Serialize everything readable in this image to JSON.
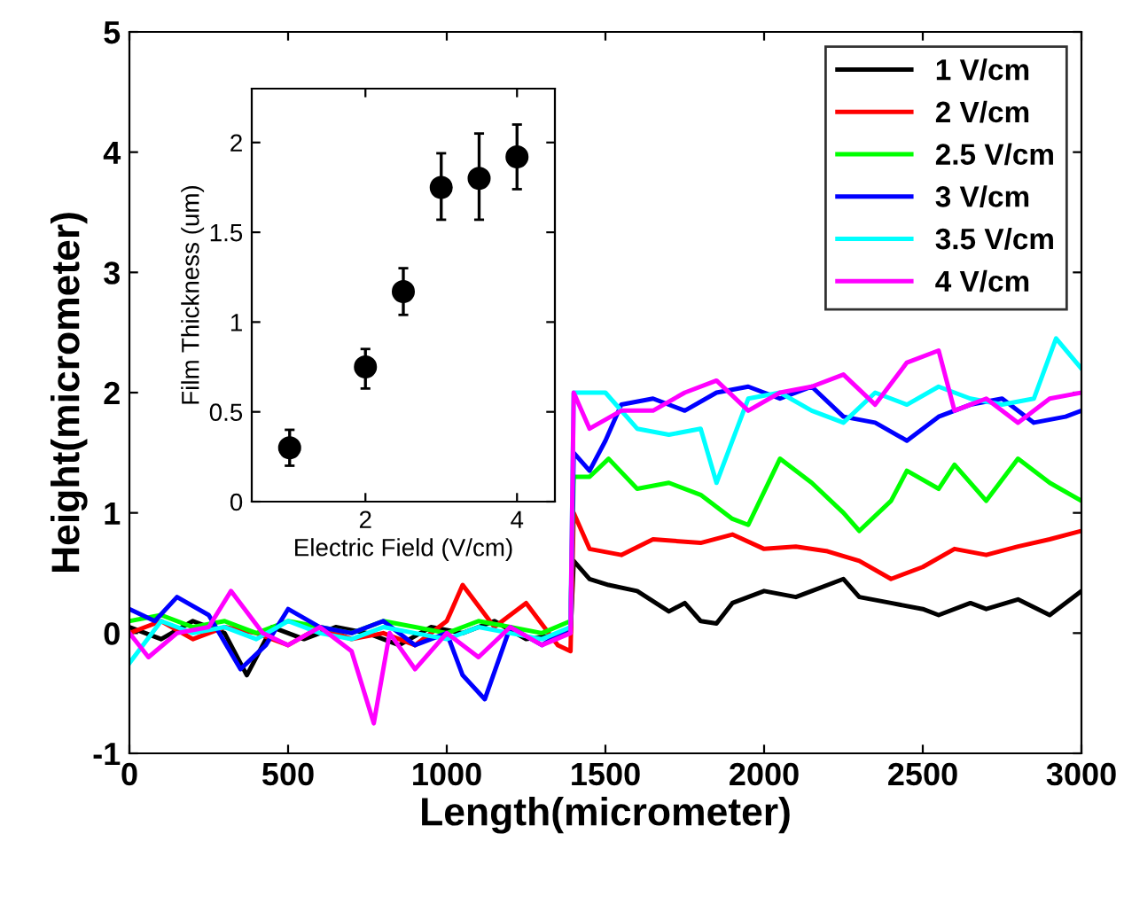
{
  "chart_data": [
    {
      "type": "line",
      "xlabel": "Length(micrometer)",
      "ylabel": "Height(micrometer)",
      "xlim": [
        0,
        3000
      ],
      "xticks": [
        0,
        500,
        1000,
        1500,
        2000,
        2500,
        3000
      ],
      "ylim": [
        -1,
        5
      ],
      "yticks": [
        -1,
        0,
        1,
        2,
        3,
        4,
        5
      ],
      "legend": "top right",
      "grid": false,
      "line_style": "solid",
      "marker": "none",
      "series": [
        {
          "name": "1 V/cm",
          "color": "#000000",
          "x": [
            0,
            100,
            200,
            300,
            370,
            450,
            550,
            650,
            750,
            850,
            950,
            1050,
            1150,
            1250,
            1390,
            1400,
            1450,
            1510,
            1600,
            1700,
            1750,
            1800,
            1850,
            1900,
            1950,
            2000,
            2100,
            2150,
            2250,
            2300,
            2400,
            2500,
            2550,
            2650,
            2700,
            2800,
            2900,
            3000
          ],
          "values": [
            0.05,
            -0.05,
            0.1,
            0.0,
            -0.35,
            0.05,
            -0.05,
            0.05,
            0.0,
            -0.1,
            0.05,
            0.0,
            0.1,
            -0.05,
            0.0,
            0.6,
            0.45,
            0.4,
            0.35,
            0.18,
            0.25,
            0.1,
            0.08,
            0.25,
            0.3,
            0.35,
            0.3,
            0.35,
            0.45,
            0.3,
            0.25,
            0.2,
            0.15,
            0.25,
            0.2,
            0.28,
            0.15,
            0.35
          ]
        },
        {
          "name": "2 V/cm",
          "color": "#ff0000",
          "x": [
            0,
            100,
            200,
            300,
            400,
            500,
            600,
            700,
            800,
            900,
            1000,
            1050,
            1150,
            1250,
            1350,
            1390,
            1400,
            1450,
            1550,
            1650,
            1800,
            1900,
            2000,
            2100,
            2200,
            2300,
            2400,
            2500,
            2600,
            2700,
            2800,
            2900,
            3000
          ],
          "values": [
            0.0,
            0.1,
            -0.05,
            0.05,
            0.0,
            -0.1,
            0.05,
            -0.05,
            0.0,
            -0.1,
            0.1,
            0.4,
            0.05,
            0.25,
            -0.1,
            -0.15,
            1.0,
            0.7,
            0.65,
            0.78,
            0.75,
            0.82,
            0.7,
            0.72,
            0.68,
            0.6,
            0.45,
            0.55,
            0.7,
            0.65,
            0.72,
            0.78,
            0.85
          ]
        },
        {
          "name": "2.5 V/cm",
          "color": "#00ff00",
          "x": [
            0,
            100,
            200,
            300,
            400,
            500,
            600,
            700,
            800,
            900,
            1000,
            1100,
            1200,
            1300,
            1390,
            1400,
            1450,
            1510,
            1600,
            1700,
            1800,
            1900,
            1950,
            2050,
            2150,
            2250,
            2300,
            2400,
            2450,
            2550,
            2600,
            2700,
            2800,
            2900,
            3000
          ],
          "values": [
            0.1,
            0.15,
            0.05,
            0.1,
            0.0,
            0.1,
            0.05,
            0.0,
            0.1,
            0.05,
            0.0,
            0.1,
            0.05,
            0.0,
            0.1,
            1.3,
            1.3,
            1.45,
            1.2,
            1.25,
            1.15,
            0.95,
            0.9,
            1.45,
            1.25,
            1.0,
            0.85,
            1.1,
            1.35,
            1.2,
            1.4,
            1.1,
            1.45,
            1.25,
            1.1
          ]
        },
        {
          "name": "3 V/cm",
          "color": "#0000ff",
          "x": [
            0,
            80,
            150,
            250,
            350,
            430,
            500,
            600,
            700,
            800,
            900,
            1000,
            1050,
            1120,
            1200,
            1300,
            1390,
            1400,
            1450,
            1500,
            1550,
            1650,
            1750,
            1850,
            1950,
            2050,
            2150,
            2250,
            2350,
            2450,
            2550,
            2650,
            2750,
            2850,
            2950,
            3000
          ],
          "values": [
            0.2,
            0.1,
            0.3,
            0.15,
            -0.3,
            -0.1,
            0.2,
            0.05,
            0.0,
            0.1,
            -0.1,
            0.0,
            -0.35,
            -0.55,
            0.05,
            -0.1,
            0.05,
            1.5,
            1.35,
            1.6,
            1.9,
            1.95,
            1.85,
            2.0,
            2.05,
            1.95,
            2.05,
            1.8,
            1.75,
            1.6,
            1.8,
            1.9,
            1.95,
            1.75,
            1.8,
            1.85
          ]
        },
        {
          "name": "3.5 V/cm",
          "color": "#00ffff",
          "x": [
            0,
            100,
            200,
            300,
            400,
            500,
            600,
            700,
            800,
            900,
            1000,
            1100,
            1200,
            1300,
            1390,
            1400,
            1500,
            1600,
            1700,
            1800,
            1850,
            1950,
            2050,
            2150,
            2250,
            2350,
            2450,
            2550,
            2650,
            2750,
            2850,
            2920,
            3000
          ],
          "values": [
            -0.25,
            0.1,
            0.0,
            0.05,
            -0.05,
            0.1,
            0.0,
            -0.05,
            0.05,
            0.0,
            -0.05,
            0.05,
            0.0,
            -0.05,
            0.05,
            2.0,
            2.0,
            1.7,
            1.65,
            1.7,
            1.25,
            1.95,
            2.0,
            1.85,
            1.75,
            2.0,
            1.9,
            2.05,
            1.95,
            1.9,
            1.95,
            2.45,
            2.2
          ]
        },
        {
          "name": "4 V/cm",
          "color": "#ff00ff",
          "x": [
            0,
            60,
            150,
            250,
            320,
            420,
            500,
            600,
            700,
            770,
            820,
            900,
            1000,
            1100,
            1200,
            1300,
            1390,
            1400,
            1450,
            1550,
            1650,
            1750,
            1850,
            1950,
            2050,
            2150,
            2250,
            2350,
            2450,
            2550,
            2600,
            2700,
            2800,
            2900,
            3000
          ],
          "values": [
            0.0,
            -0.2,
            0.0,
            0.05,
            0.35,
            0.0,
            -0.1,
            0.05,
            -0.15,
            -0.75,
            0.0,
            -0.3,
            0.0,
            -0.2,
            0.05,
            -0.1,
            0.0,
            2.0,
            1.7,
            1.85,
            1.85,
            2.0,
            2.1,
            1.85,
            2.0,
            2.05,
            2.15,
            1.9,
            2.25,
            2.35,
            1.85,
            1.95,
            1.75,
            1.95,
            2.0
          ]
        }
      ]
    },
    {
      "type": "scatter",
      "xlabel": "Electric Field (V/cm)",
      "ylabel": "Film Thickness (um)",
      "xlim": [
        0.5,
        4.5
      ],
      "xticks": [
        2,
        4
      ],
      "ylim": [
        0,
        2.3
      ],
      "yticks": [
        0,
        0.5,
        1,
        1.5,
        2
      ],
      "marker": "circle",
      "grid": false,
      "series": [
        {
          "color": "#000000",
          "x": [
            1,
            2,
            2.5,
            3,
            3.5,
            4
          ],
          "values": [
            0.3,
            0.75,
            1.17,
            1.75,
            1.8,
            1.92
          ],
          "errors": [
            [
              0.2,
              0.4
            ],
            [
              0.63,
              0.85
            ],
            [
              1.04,
              1.3
            ],
            [
              1.57,
              1.94
            ],
            [
              1.57,
              2.05
            ],
            [
              1.74,
              2.1
            ]
          ]
        }
      ]
    }
  ]
}
